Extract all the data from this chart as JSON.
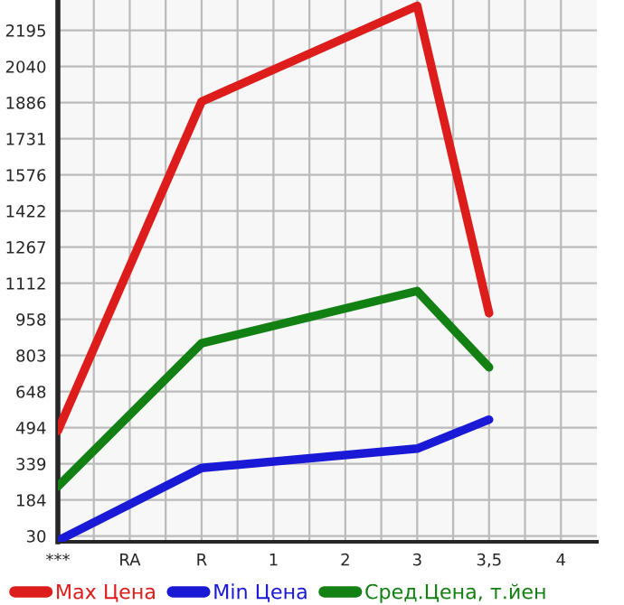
{
  "chart_data": {
    "type": "line",
    "categories": [
      "***",
      "RA",
      "R",
      "1",
      "2",
      "3",
      "3,5",
      "4"
    ],
    "series": [
      {
        "name": "Max Цена",
        "color": "#dd1c1c",
        "values": [
          480,
          null,
          1890,
          null,
          null,
          2300,
          984,
          null
        ]
      },
      {
        "name": "Min Цена",
        "color": "#1a1ad6",
        "values": [
          10,
          null,
          321,
          null,
          null,
          404,
          528,
          null
        ]
      },
      {
        "name": "Сред.Цена, т.йен",
        "color": "#138013",
        "values": [
          242,
          null,
          855,
          null,
          null,
          1079,
          752,
          null
        ]
      }
    ],
    "ylim": [
      5,
      2325
    ],
    "yticks": [
      30,
      184,
      339,
      494,
      648,
      803,
      958,
      1112,
      1267,
      1422,
      1576,
      1731,
      1886,
      2040,
      2195
    ],
    "grid": true,
    "legend": "bottom",
    "marker": "none",
    "line_style": "solid"
  }
}
